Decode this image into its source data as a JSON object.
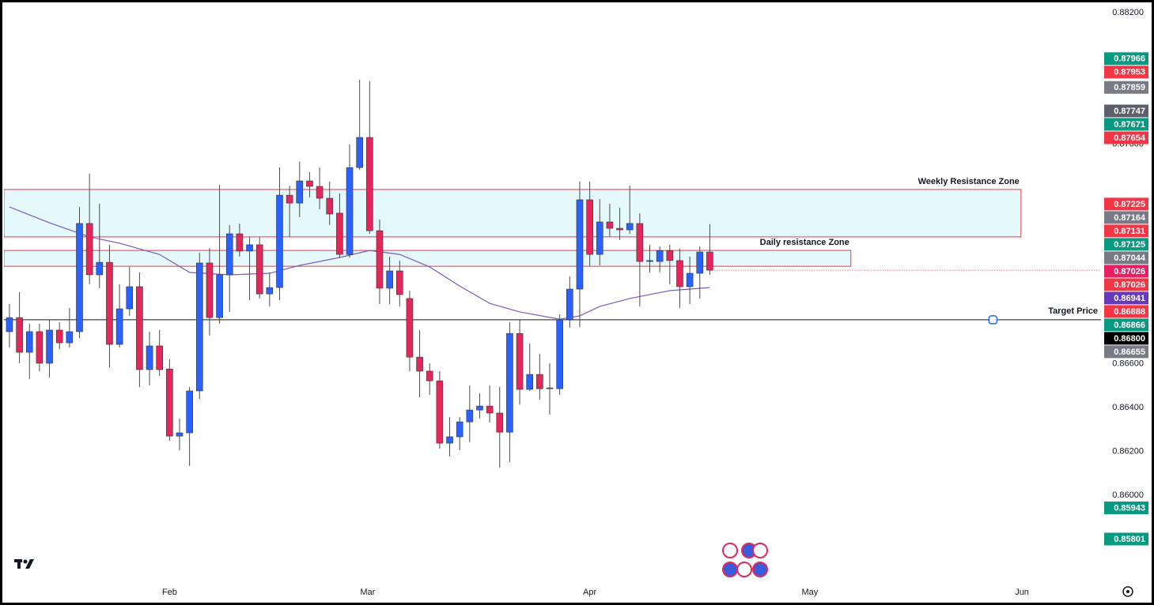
{
  "chart_data": {
    "type": "candlestick",
    "categories": [
      null,
      null,
      null,
      null,
      null,
      null,
      null,
      null,
      null,
      null,
      null,
      null,
      null,
      null,
      null,
      null,
      null,
      null,
      null,
      null,
      null,
      null,
      null,
      null,
      null,
      null,
      null,
      null,
      null,
      null,
      null,
      null,
      null,
      null,
      null,
      null,
      null,
      null,
      null,
      null,
      null,
      null,
      null,
      null,
      null,
      null,
      null,
      null,
      null,
      null,
      null,
      null,
      null,
      null,
      null,
      null,
      null,
      null,
      null,
      null,
      null,
      null,
      null,
      null,
      null,
      null,
      null,
      null,
      null,
      null,
      null
    ],
    "open": [
      0.86746,
      0.8681,
      0.86652,
      0.86746,
      0.86602,
      0.86753,
      0.86695,
      0.86746,
      0.87239,
      0.87005,
      0.87062,
      0.86688,
      0.8685,
      0.86951,
      0.86573,
      0.86681,
      0.86576,
      0.8627,
      0.86285,
      0.86476,
      0.87059,
      0.8681,
      0.87005,
      0.87192,
      0.87113,
      0.87142,
      0.86918,
      0.86947,
      0.87368,
      0.87332,
      0.87433,
      0.87408,
      0.87354,
      0.87286,
      0.87098,
      0.87494,
      0.87631,
      0.87206,
      0.86944,
      0.87023,
      0.86897,
      0.8663,
      0.86566,
      0.86522,
      0.86238,
      0.86267,
      0.86335,
      0.86389,
      0.86407,
      0.86375,
      0.86288,
      0.86738,
      0.86483,
      0.86551,
      0.8649,
      0.86486,
      0.868,
      0.8694,
      0.87347,
      0.87098,
      0.87246,
      0.87217,
      0.8721,
      0.87239,
      0.87066,
      0.87066,
      0.87116,
      0.8707,
      0.86951,
      0.87012,
      0.87109
    ],
    "high": [
      0.86872,
      0.86926,
      0.86782,
      0.86782,
      0.868,
      0.86789,
      0.86854,
      0.87314,
      0.87466,
      0.87329,
      0.87142,
      0.86962,
      0.87041,
      0.87016,
      0.86746,
      0.86753,
      0.8662,
      0.8635,
      0.86494,
      0.87106,
      0.87127,
      0.87415,
      0.87232,
      0.87239,
      0.87178,
      0.87178,
      0.87016,
      0.87494,
      0.87412,
      0.8752,
      0.87473,
      0.87494,
      0.8743,
      0.87376,
      0.87599,
      0.87894,
      0.87887,
      0.87257,
      0.87088,
      0.8707,
      0.86933,
      0.86753,
      0.86602,
      0.86566,
      0.86357,
      0.86357,
      0.86501,
      0.86465,
      0.86501,
      0.86494,
      0.86789,
      0.868,
      0.86692,
      0.86645,
      0.86602,
      0.86825,
      0.86998,
      0.8743,
      0.8743,
      0.8735,
      0.87329,
      0.87311,
      0.87412,
      0.87286,
      0.87142,
      0.87134,
      0.87142,
      0.87124,
      0.87088,
      0.87134,
      0.87235
    ],
    "low": [
      0.86674,
      0.86602,
      0.8653,
      0.86566,
      0.86537,
      0.86666,
      0.86674,
      0.86717,
      0.86962,
      0.86944,
      0.86584,
      0.86674,
      0.86818,
      0.86494,
      0.86501,
      0.86544,
      0.86249,
      0.86206,
      0.86134,
      0.8644,
      0.86728,
      0.86782,
      0.86836,
      0.87088,
      0.8689,
      0.86897,
      0.86861,
      0.8689,
      0.87178,
      0.87268,
      0.87358,
      0.87304,
      0.87232,
      0.87084,
      0.87084,
      0.87484,
      0.87192,
      0.86872,
      0.86872,
      0.86861,
      0.86566,
      0.86447,
      0.86458,
      0.86213,
      0.86177,
      0.86206,
      0.86242,
      0.8635,
      0.86332,
      0.86126,
      0.86152,
      0.86414,
      0.86476,
      0.86436,
      0.86368,
      0.86458,
      0.86764,
      0.86767,
      0.87044,
      0.87048,
      0.87178,
      0.87163,
      0.87192,
      0.86861,
      0.87016,
      0.87016,
      0.86962,
      0.86854,
      0.86872,
      0.86897,
      0.87005
    ],
    "close": [
      0.8681,
      0.86652,
      0.86746,
      0.86602,
      0.86753,
      0.86695,
      0.86746,
      0.87239,
      0.87005,
      0.87062,
      0.86688,
      0.8685,
      0.86951,
      0.86573,
      0.86681,
      0.86573,
      0.8627,
      0.86285,
      0.86476,
      0.87059,
      0.8681,
      0.87005,
      0.87192,
      0.87113,
      0.87142,
      0.86918,
      0.86947,
      0.87368,
      0.87332,
      0.87433,
      0.87408,
      0.87354,
      0.87282,
      0.87098,
      0.87494,
      0.87631,
      0.87206,
      0.86944,
      0.87023,
      0.86915,
      0.8663,
      0.86566,
      0.86522,
      0.86238,
      0.86267,
      0.86335,
      0.86389,
      0.86407,
      0.86375,
      0.86288,
      0.86738,
      0.86483,
      0.86551,
      0.86486,
      0.86486,
      0.868,
      0.8694,
      0.87347,
      0.87098,
      0.87246,
      0.87217,
      0.8721,
      0.87239,
      0.87066,
      0.8707,
      0.87116,
      0.8707,
      0.86951,
      0.87012,
      0.87109,
      0.87026
    ],
    "up_color": "#2962ff",
    "down_color": "#e2285a",
    "moving_average": {
      "color": "#7e57c2",
      "x": [
        0,
        4,
        8,
        11,
        15,
        18,
        22,
        26,
        29,
        33,
        36,
        39,
        42,
        45,
        48,
        51,
        55,
        57,
        59,
        62,
        66,
        70
      ],
      "values": [
        0.87314,
        0.87242,
        0.87178,
        0.87149,
        0.87098,
        0.87016,
        0.87005,
        0.87012,
        0.87048,
        0.87084,
        0.87116,
        0.87098,
        0.87041,
        0.86954,
        0.86875,
        0.86836,
        0.86803,
        0.86818,
        0.86861,
        0.86897,
        0.86933,
        0.86947
      ]
    },
    "zones": [
      {
        "label": "Weekly Resistance Zone",
        "range": [
          0.87178,
          0.87394
        ],
        "x_end": 101.1,
        "color": "#e0f7fa",
        "border": "#f23645"
      },
      {
        "label": "Daily resistance Zone",
        "range": [
          0.87044,
          0.87116
        ],
        "x_end": 84.1,
        "color": "#e0f7fa",
        "border": "#f23645"
      }
    ],
    "target": {
      "label": "Target Price",
      "value": 0.868,
      "marker_x": 98.3
    },
    "xlim": [
      -0.55,
      109.1
    ],
    "xticks": [
      {
        "value": 16,
        "label": "Feb"
      },
      {
        "value": 35.8,
        "label": "Mar"
      },
      {
        "value": 58,
        "label": "Apr"
      },
      {
        "value": 80,
        "label": "May"
      },
      {
        "value": 101.2,
        "label": "Jun"
      }
    ],
    "ylim": [
      0.85594,
      0.88243
    ],
    "yticks": [
      {
        "value": 0.882,
        "label": "0.88200"
      },
      {
        "value": 0.876,
        "label": "0.87600"
      },
      {
        "value": 0.866,
        "label": "0.86600"
      },
      {
        "value": 0.864,
        "label": "0.86400"
      },
      {
        "value": 0.862,
        "label": "0.86200"
      },
      {
        "value": 0.86,
        "label": "0.86000"
      }
    ],
    "grid": false,
    "price_labels": [
      {
        "value": 0.87966,
        "label": "0.87966",
        "color": "#089981"
      },
      {
        "value": 0.87953,
        "label": "0.87953",
        "color": "#f23645"
      },
      {
        "value": 0.87859,
        "label": "0.87859",
        "color": "#787b86"
      },
      {
        "value": 0.87747,
        "label": "0.87747",
        "color": "#5d606b"
      },
      {
        "value": 0.87671,
        "label": "0.87671",
        "color": "#089981"
      },
      {
        "value": 0.87654,
        "label": "0.87654",
        "color": "#f23645"
      },
      {
        "value": 0.87225,
        "label": "0.87225",
        "color": "#f23645"
      },
      {
        "value": 0.87164,
        "label": "0.87164",
        "color": "#787b86"
      },
      {
        "value": 0.87131,
        "label": "0.87131",
        "color": "#f23645"
      },
      {
        "value": 0.87125,
        "label": "0.87125",
        "color": "#089981"
      },
      {
        "value": 0.87044,
        "label": "0.87044",
        "color": "#787b86"
      },
      {
        "value": 0.87026,
        "label": "0.87026",
        "color": "#e91e63"
      },
      {
        "value": 0.87026,
        "label": "0.87026",
        "color": "#f23645"
      },
      {
        "value": 0.86941,
        "label": "0.86941",
        "color": "#673ab7"
      },
      {
        "value": 0.86888,
        "label": "0.86888",
        "color": "#f23645"
      },
      {
        "value": 0.86866,
        "label": "0.86866",
        "color": "#089981"
      },
      {
        "value": 0.868,
        "label": "0.86800",
        "color": "#000000"
      },
      {
        "value": 0.86655,
        "label": "0.86655",
        "color": "#787b86"
      },
      {
        "value": 0.85943,
        "label": "0.85943",
        "color": "#089981"
      },
      {
        "value": 0.85801,
        "label": "0.85801",
        "color": "#089981"
      }
    ]
  }
}
